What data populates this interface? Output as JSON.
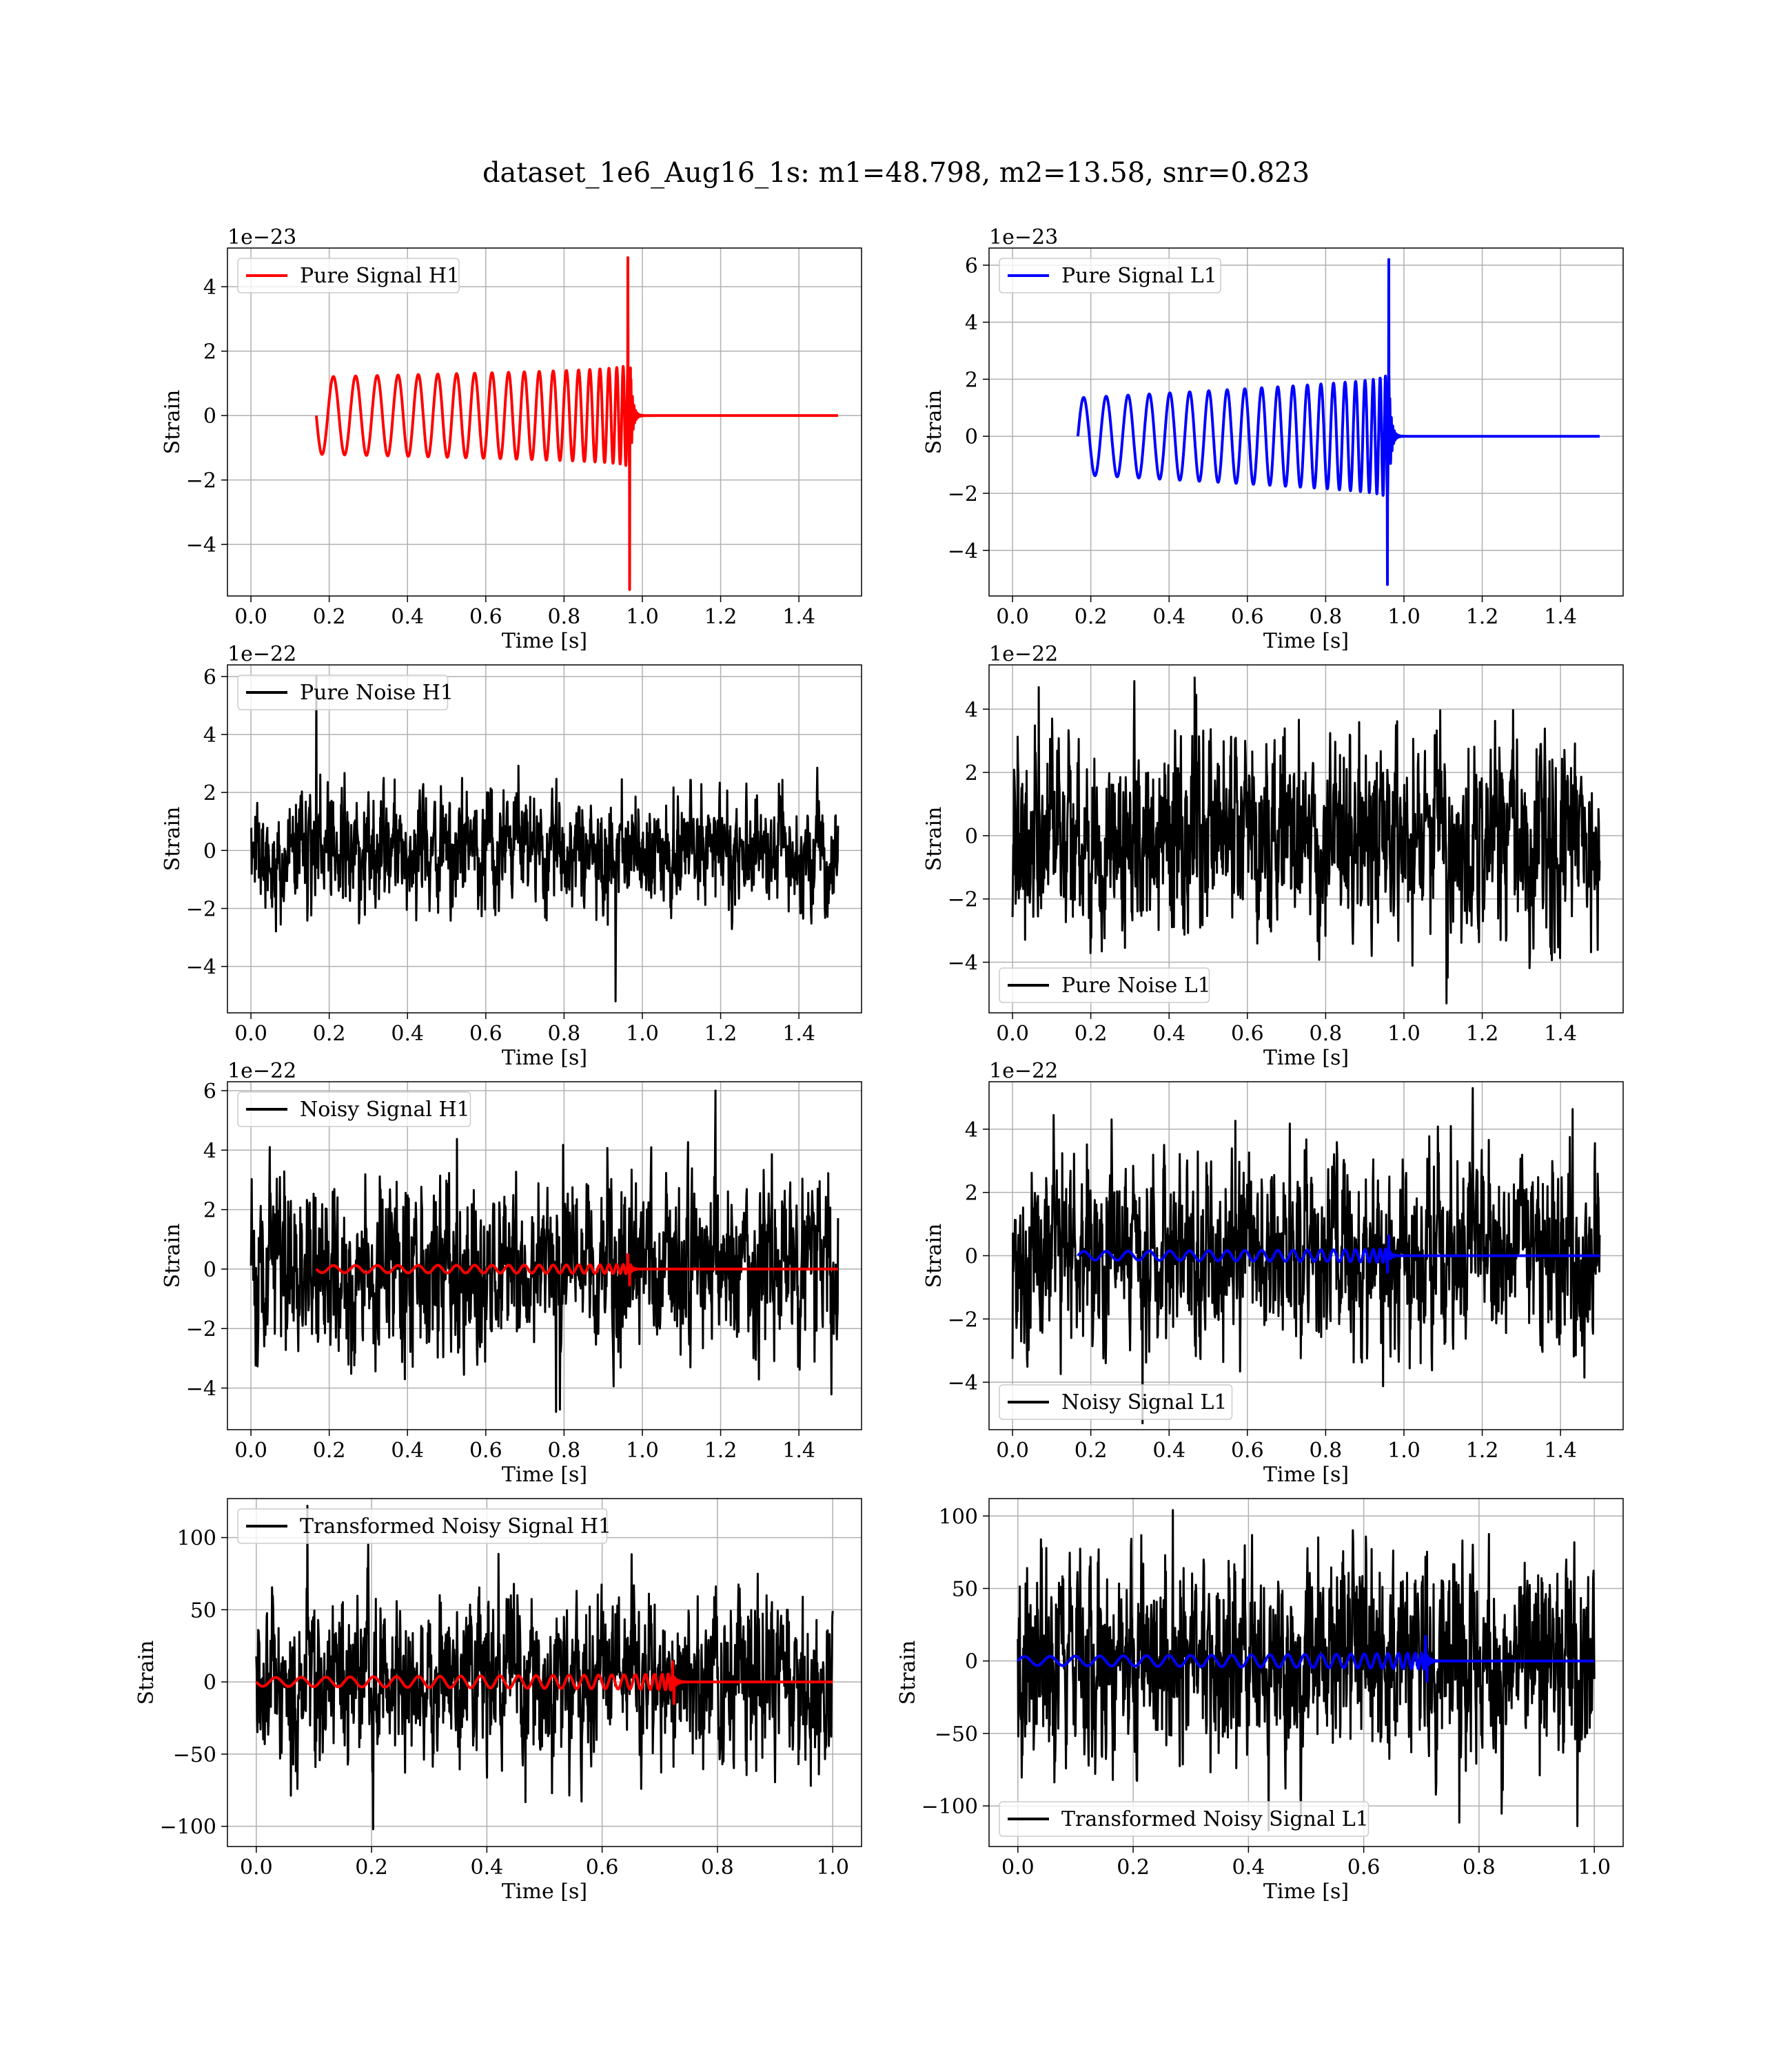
{
  "figure": {
    "title": "dataset_1e6_Aug16_1s: m1=48.798, m2=13.58, snr=0.823"
  },
  "chart_data": [
    {
      "type": "line",
      "id": "pure_signal_h1",
      "xlabel": "Time [s]",
      "ylabel": "Strain",
      "offset_text": "1e−23",
      "xlim": [
        -0.06,
        1.56
      ],
      "ylim": [
        -5.6,
        5.2
      ],
      "xticks": [
        0.0,
        0.2,
        0.4,
        0.6,
        0.8,
        1.0,
        1.2,
        1.4
      ],
      "xtick_labels": [
        "0.0",
        "0.2",
        "0.4",
        "0.6",
        "0.8",
        "1.0",
        "1.2",
        "1.4"
      ],
      "yticks": [
        -4,
        -2,
        0,
        2,
        4
      ],
      "ytick_labels": [
        "−4",
        "−2",
        "0",
        "2",
        "4"
      ],
      "grid": true,
      "legend_position": "upper-left",
      "series": [
        {
          "name": "Pure Signal H1",
          "color": "#ff0000",
          "kind": "chirp",
          "params": {
            "t_start": 0.167,
            "t_merge": 0.97,
            "t_end": 1.5,
            "amp_start": 1.2,
            "amp_end": 1.4,
            "f_start": 17,
            "amp_min": -5.4,
            "amp_max": 4.9,
            "initial_sign": -1
          }
        }
      ]
    },
    {
      "type": "line",
      "id": "pure_signal_l1",
      "xlabel": "Time [s]",
      "ylabel": "Strain",
      "offset_text": "1e−23",
      "xlim": [
        -0.06,
        1.56
      ],
      "ylim": [
        -5.6,
        6.6
      ],
      "xticks": [
        0.0,
        0.2,
        0.4,
        0.6,
        0.8,
        1.0,
        1.2,
        1.4
      ],
      "xtick_labels": [
        "0.0",
        "0.2",
        "0.4",
        "0.6",
        "0.8",
        "1.0",
        "1.2",
        "1.4"
      ],
      "yticks": [
        -4,
        -2,
        0,
        2,
        4,
        6
      ],
      "ytick_labels": [
        "−4",
        "−2",
        "0",
        "2",
        "4",
        "6"
      ],
      "grid": true,
      "legend_position": "upper-left",
      "series": [
        {
          "name": "Pure Signal L1",
          "color": "#0000ff",
          "kind": "chirp",
          "params": {
            "t_start": 0.167,
            "t_merge": 0.963,
            "t_end": 1.5,
            "amp_start": 1.35,
            "amp_end": 1.9,
            "f_start": 17,
            "amp_min": -5.2,
            "amp_max": 6.2,
            "initial_sign": 1
          }
        }
      ]
    },
    {
      "type": "line",
      "id": "pure_noise_h1",
      "xlabel": "Time [s]",
      "ylabel": "Strain",
      "offset_text": "1e−22",
      "xlim": [
        -0.06,
        1.56
      ],
      "ylim": [
        -5.6,
        6.4
      ],
      "xticks": [
        0.0,
        0.2,
        0.4,
        0.6,
        0.8,
        1.0,
        1.2,
        1.4
      ],
      "xtick_labels": [
        "0.0",
        "0.2",
        "0.4",
        "0.6",
        "0.8",
        "1.0",
        "1.2",
        "1.4"
      ],
      "yticks": [
        -4,
        -2,
        0,
        2,
        4,
        6
      ],
      "ytick_labels": [
        "−4",
        "−2",
        "0",
        "2",
        "4",
        "6"
      ],
      "grid": true,
      "legend_position": "upper-left",
      "series": [
        {
          "name": "Pure Noise H1",
          "color": "#000000",
          "kind": "noise",
          "params": {
            "t_start": 0.0,
            "t_end": 1.5,
            "std": 1.45,
            "min": -5.2,
            "max": 6.0,
            "seed": 11
          }
        }
      ]
    },
    {
      "type": "line",
      "id": "pure_noise_l1",
      "xlabel": "Time [s]",
      "ylabel": "Strain",
      "offset_text": "1e−22",
      "xlim": [
        -0.06,
        1.56
      ],
      "ylim": [
        -5.6,
        5.4
      ],
      "xticks": [
        0.0,
        0.2,
        0.4,
        0.6,
        0.8,
        1.0,
        1.2,
        1.4
      ],
      "xtick_labels": [
        "0.0",
        "0.2",
        "0.4",
        "0.6",
        "0.8",
        "1.0",
        "1.2",
        "1.4"
      ],
      "yticks": [
        -4,
        -2,
        0,
        2,
        4
      ],
      "ytick_labels": [
        "−4",
        "−2",
        "0",
        "2",
        "4"
      ],
      "grid": true,
      "legend_position": "lower-left",
      "series": [
        {
          "name": "Pure Noise L1",
          "color": "#000000",
          "kind": "noise",
          "params": {
            "t_start": 0.0,
            "t_end": 1.5,
            "std": 1.45,
            "min": -5.3,
            "max": 5.0,
            "seed": 23
          }
        }
      ]
    },
    {
      "type": "line",
      "id": "noisy_signal_h1",
      "xlabel": "Time [s]",
      "ylabel": "Strain",
      "offset_text": "1e−22",
      "xlim": [
        -0.06,
        1.56
      ],
      "ylim": [
        -5.4,
        6.3
      ],
      "xticks": [
        0.0,
        0.2,
        0.4,
        0.6,
        0.8,
        1.0,
        1.2,
        1.4
      ],
      "xtick_labels": [
        "0.0",
        "0.2",
        "0.4",
        "0.6",
        "0.8",
        "1.0",
        "1.2",
        "1.4"
      ],
      "yticks": [
        -4,
        -2,
        0,
        2,
        4,
        6
      ],
      "ytick_labels": [
        "−4",
        "−2",
        "0",
        "2",
        "4",
        "6"
      ],
      "grid": true,
      "legend_position": "upper-left",
      "series": [
        {
          "name": "Noisy Signal H1",
          "color": "#000000",
          "kind": "noise",
          "params": {
            "t_start": 0.0,
            "t_end": 1.5,
            "std": 1.45,
            "min": -4.8,
            "max": 6.0,
            "seed": 37
          }
        },
        {
          "color": "#ff0000",
          "kind": "chirp",
          "params": {
            "t_start": 0.167,
            "t_merge": 0.97,
            "t_end": 1.5,
            "amp_start": 0.12,
            "amp_end": 0.14,
            "f_start": 17,
            "amp_min": -0.54,
            "amp_max": 0.49,
            "initial_sign": -1
          }
        }
      ]
    },
    {
      "type": "line",
      "id": "noisy_signal_l1",
      "xlabel": "Time [s]",
      "ylabel": "Strain",
      "offset_text": "1e−22",
      "xlim": [
        -0.06,
        1.56
      ],
      "ylim": [
        -5.5,
        5.5
      ],
      "xticks": [
        0.0,
        0.2,
        0.4,
        0.6,
        0.8,
        1.0,
        1.2,
        1.4
      ],
      "xtick_labels": [
        "0.0",
        "0.2",
        "0.4",
        "0.6",
        "0.8",
        "1.0",
        "1.2",
        "1.4"
      ],
      "yticks": [
        -4,
        -2,
        0,
        2,
        4
      ],
      "ytick_labels": [
        "−4",
        "−2",
        "0",
        "2",
        "4"
      ],
      "grid": true,
      "legend_position": "lower-left",
      "series": [
        {
          "name": "Noisy Signal L1",
          "color": "#000000",
          "kind": "noise",
          "params": {
            "t_start": 0.0,
            "t_end": 1.5,
            "std": 1.45,
            "min": -5.3,
            "max": 5.3,
            "seed": 51
          }
        },
        {
          "color": "#0000ff",
          "kind": "chirp",
          "params": {
            "t_start": 0.167,
            "t_merge": 0.963,
            "t_end": 1.5,
            "amp_start": 0.135,
            "amp_end": 0.19,
            "f_start": 17,
            "amp_min": -0.52,
            "amp_max": 0.62,
            "initial_sign": 1
          }
        }
      ]
    },
    {
      "type": "line",
      "id": "transformed_noisy_signal_h1",
      "xlabel": "Time [s]",
      "ylabel": "Strain",
      "offset_text": "",
      "xlim": [
        -0.05,
        1.05
      ],
      "ylim": [
        -114,
        127
      ],
      "xticks": [
        0.0,
        0.2,
        0.4,
        0.6,
        0.8,
        1.0
      ],
      "xtick_labels": [
        "0.0",
        "0.2",
        "0.4",
        "0.6",
        "0.8",
        "1.0"
      ],
      "yticks": [
        -100,
        -50,
        0,
        50,
        100
      ],
      "ytick_labels": [
        "−100",
        "−50",
        "0",
        "50",
        "100"
      ],
      "grid": true,
      "legend_position": "upper-left",
      "series": [
        {
          "name": "Transformed Noisy Signal H1",
          "color": "#000000",
          "kind": "noise",
          "params": {
            "t_start": 0.0,
            "t_end": 1.0,
            "std": 28,
            "min": -102,
            "max": 122,
            "seed": 67
          }
        },
        {
          "color": "#ff0000",
          "kind": "chirp",
          "params": {
            "t_start": 0.0,
            "t_merge": 0.725,
            "t_end": 1.0,
            "amp_start": 3,
            "amp_end": 5,
            "f_start": 22,
            "amp_min": -15,
            "amp_max": 14,
            "initial_sign": -1
          }
        }
      ]
    },
    {
      "type": "line",
      "id": "transformed_noisy_signal_l1",
      "xlabel": "Time [s]",
      "ylabel": "Strain",
      "offset_text": "",
      "xlim": [
        -0.05,
        1.05
      ],
      "ylim": [
        -128,
        112
      ],
      "xticks": [
        0.0,
        0.2,
        0.4,
        0.6,
        0.8,
        1.0
      ],
      "xtick_labels": [
        "0.0",
        "0.2",
        "0.4",
        "0.6",
        "0.8",
        "1.0"
      ],
      "yticks": [
        -100,
        -50,
        0,
        50,
        100
      ],
      "ytick_labels": [
        "−100",
        "−50",
        "0",
        "50",
        "100"
      ],
      "grid": true,
      "legend_position": "lower-left",
      "series": [
        {
          "name": "Transformed Noisy Signal L1",
          "color": "#000000",
          "kind": "noise",
          "params": {
            "t_start": 0.0,
            "t_end": 1.0,
            "std": 28,
            "min": -117,
            "max": 104,
            "seed": 79
          }
        },
        {
          "color": "#0000ff",
          "kind": "chirp",
          "params": {
            "t_start": 0.0,
            "t_merge": 0.71,
            "t_end": 1.0,
            "amp_start": 3,
            "amp_end": 5,
            "f_start": 22,
            "amp_min": -14,
            "amp_max": 17,
            "initial_sign": 1
          }
        }
      ]
    }
  ]
}
